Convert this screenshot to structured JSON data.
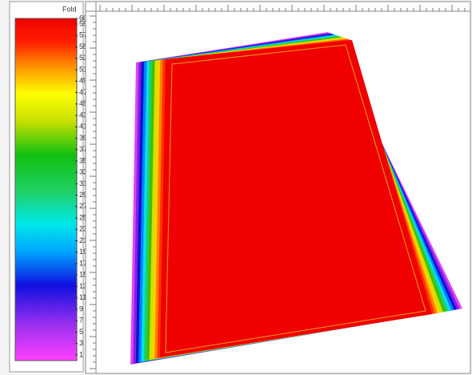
{
  "colorbar": {
    "title": "Fold",
    "range": [
      0,
      60
    ],
    "ticks": [
      60,
      59,
      57,
      55,
      53,
      51,
      49,
      47,
      45,
      43,
      41,
      39,
      37,
      35,
      33,
      31,
      29,
      27,
      25,
      23,
      21,
      19,
      17,
      15,
      13,
      11,
      9,
      7,
      5,
      3,
      1
    ]
  }
}
